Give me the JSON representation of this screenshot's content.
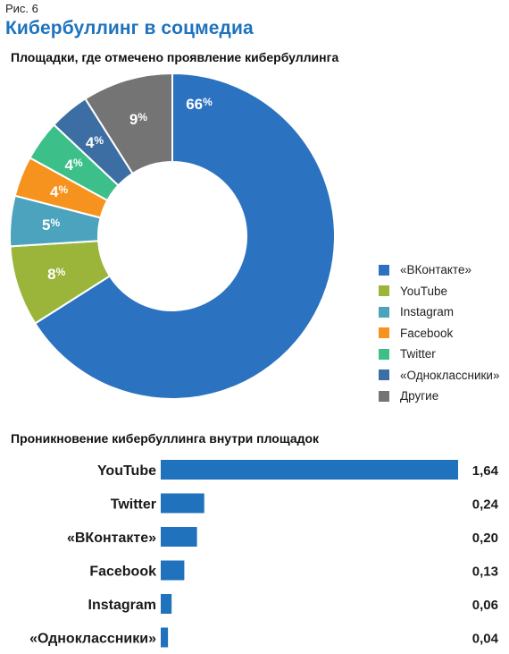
{
  "figure_label": "Рис. 6",
  "title": "Кибербуллинг в соцмедиа",
  "colors": {
    "accent": "#1e73be",
    "vkontakte": "#2b72c0",
    "youtube": "#9bb53a",
    "instagram": "#4ba3bd",
    "facebook": "#f6921e",
    "twitter": "#3cbf89",
    "odnoklassniki": "#3d6ea3",
    "other": "#747474",
    "bar": "#2072bd"
  },
  "chart_data": [
    {
      "type": "pie",
      "title": "Площадки, где отмечено проявление кибербуллинга",
      "donut": true,
      "legend_position": "right",
      "slices": [
        {
          "name": "«ВКонтакте»",
          "value": 66,
          "label": "66",
          "color_key": "vkontakte"
        },
        {
          "name": "YouTube",
          "value": 8,
          "label": "8",
          "color_key": "youtube"
        },
        {
          "name": "Instagram",
          "value": 5,
          "label": "5",
          "color_key": "instagram"
        },
        {
          "name": "Facebook",
          "value": 4,
          "label": "4",
          "color_key": "facebook"
        },
        {
          "name": "Twitter",
          "value": 4,
          "label": "4",
          "color_key": "twitter"
        },
        {
          "name": "«Одноклассники»",
          "value": 4,
          "label": "4",
          "color_key": "odnoklassniki"
        },
        {
          "name": "Другие",
          "value": 9,
          "label": "9",
          "color_key": "other"
        }
      ],
      "unit": "%"
    },
    {
      "type": "bar",
      "orientation": "horizontal",
      "title": "Проникновение кибербуллинга внутри площадок",
      "categories": [
        "YouTube",
        "Twitter",
        "«ВКонтакте»",
        "Facebook",
        "Instagram",
        "«Одноклассники»"
      ],
      "values": [
        1.64,
        0.24,
        0.2,
        0.13,
        0.06,
        0.04
      ],
      "value_labels": [
        "1,64",
        "0,24",
        "0,20",
        "0,13",
        "0,06",
        "0,04"
      ],
      "xlim": [
        0,
        1.64
      ]
    }
  ]
}
